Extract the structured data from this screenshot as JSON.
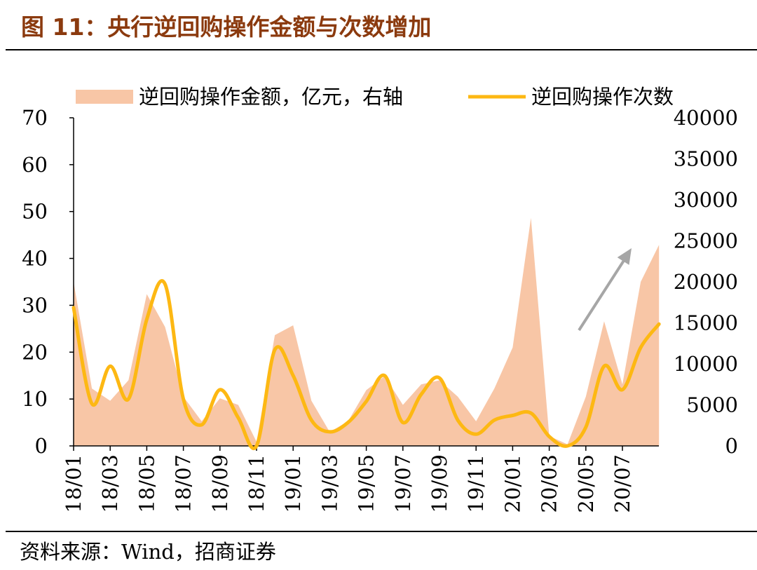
{
  "figure": {
    "title": "图 11：央行逆回购操作金额与次数增加",
    "source": "资料来源：Wind，招商证券"
  },
  "colors": {
    "title": "#8B3A0E",
    "area": "#F8C6A6",
    "line": "#FDB813",
    "arrow": "#A6A6A6"
  },
  "chart_data": {
    "type": "line",
    "title": "",
    "legend_position": "top",
    "grid": false,
    "x_tick_labels": [
      "18/01",
      "18/03",
      "18/05",
      "18/07",
      "18/09",
      "18/11",
      "19/01",
      "19/03",
      "19/05",
      "19/07",
      "19/09",
      "19/11",
      "20/01",
      "20/03",
      "20/05",
      "20/07"
    ],
    "x": [
      "18/01",
      "18/02",
      "18/03",
      "18/04",
      "18/05",
      "18/06",
      "18/07",
      "18/08",
      "18/09",
      "18/10",
      "18/11",
      "18/12",
      "19/01",
      "19/02",
      "19/03",
      "19/04",
      "19/05",
      "19/06",
      "19/07",
      "19/08",
      "19/09",
      "19/10",
      "19/11",
      "19/12",
      "20/01",
      "20/02",
      "20/03",
      "20/04",
      "20/05",
      "20/06",
      "20/07",
      "20/08",
      "20/09"
    ],
    "y_left": {
      "ticks": [
        0,
        10,
        20,
        30,
        40,
        50,
        60,
        70
      ],
      "ylim": [
        0,
        70
      ]
    },
    "y_right": {
      "ticks": [
        0,
        5000,
        10000,
        15000,
        20000,
        25000,
        30000,
        35000,
        40000
      ],
      "ylim": [
        0,
        40000
      ]
    },
    "series": [
      {
        "name": "逆回购操作金额，亿元，右轴",
        "type": "area",
        "axis": "right",
        "values": [
          20000,
          7000,
          5500,
          8000,
          18500,
          14500,
          6000,
          3000,
          5800,
          5000,
          500,
          13500,
          14700,
          5500,
          1700,
          3000,
          6800,
          8500,
          5000,
          7500,
          8000,
          6000,
          3000,
          7000,
          12000,
          27800,
          1200,
          200,
          6000,
          15200,
          7500,
          20000,
          24500
        ]
      },
      {
        "name": "逆回购操作次数",
        "type": "line",
        "axis": "left",
        "values": [
          29.5,
          9,
          17,
          10,
          27,
          34.5,
          10,
          4.5,
          12,
          6,
          0,
          20.5,
          15,
          5.5,
          3,
          5,
          9.5,
          15,
          5,
          11,
          14.5,
          5.5,
          2.5,
          5.5,
          6.5,
          7,
          2,
          0,
          4,
          17,
          12,
          21,
          26
        ]
      }
    ],
    "annotations": [
      {
        "type": "arrow",
        "description": "upward trend arrow"
      }
    ]
  }
}
